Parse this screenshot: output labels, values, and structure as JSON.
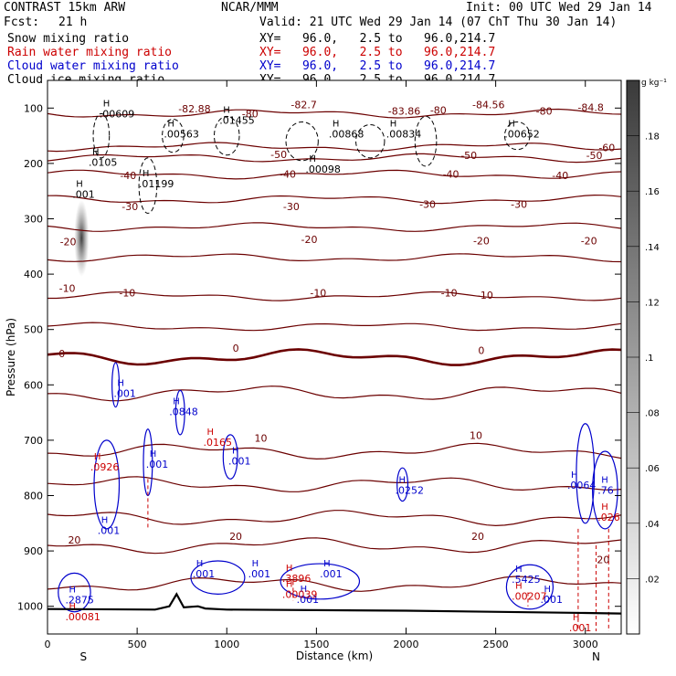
{
  "header": {
    "model": "CONTRAST 15km ARW",
    "center": "NCAR/MMM",
    "init": "Init: 00 UTC Wed 29 Jan 14",
    "fcst_label": "Fcst:",
    "fcst_value": "21 h",
    "valid": "Valid: 21 UTC Wed 29 Jan 14 (07 ChT Thu 30 Jan 14)",
    "fields": [
      {
        "name": "Snow mixing ratio",
        "xy": "XY=   96.0,   2.5 to   96.0,214.7",
        "color": "#000000"
      },
      {
        "name": "Rain water mixing ratio",
        "xy": "XY=   96.0,   2.5 to   96.0,214.7",
        "color": "#cc0000"
      },
      {
        "name": "Cloud water mixing ratio",
        "xy": "XY=   96.0,   2.5 to   96.0,214.7",
        "color": "#0000cc"
      },
      {
        "name": "Cloud ice mixing ratio",
        "xy": "XY=   96.0,   2.5 to   96.0,214.7",
        "color": "#000000"
      }
    ]
  },
  "colors": {
    "temperature": "#6b0000",
    "freezing": "#6b0000",
    "rain": "#cc0000",
    "cloud_water": "#0000cc",
    "terrain": "#000000"
  },
  "chart_data": {
    "type": "cross-section",
    "xlabel": "Distance (km)",
    "ylabel": "Pressure (hPa)",
    "xlim": [
      0,
      3200
    ],
    "ylim": [
      1050,
      50
    ],
    "xticks": [
      0,
      500,
      1000,
      1500,
      2000,
      2500,
      3000
    ],
    "yticks": [
      100,
      200,
      300,
      400,
      500,
      600,
      700,
      800,
      900,
      1000
    ],
    "endpoint_labels": {
      "left": "S",
      "right": "N"
    },
    "colorbar": {
      "unit": "g kg⁻¹",
      "ticks": [
        0.02,
        0.04,
        0.06,
        0.08,
        0.1,
        0.12,
        0.14,
        0.16,
        0.18
      ],
      "tick_labels": [
        ".02",
        ".04",
        ".06",
        ".08",
        ".1",
        ".12",
        ".14",
        ".16",
        ".18"
      ],
      "range": [
        0,
        0.2
      ]
    },
    "temperature_contours": [
      {
        "label": "-80",
        "p": 110
      },
      {
        "label": "-60",
        "p": 170
      },
      {
        "label": "-50",
        "p": 190
      },
      {
        "label": "-40",
        "p": 220
      },
      {
        "label": "-30",
        "p": 265
      },
      {
        "label": "-20",
        "p": 315
      },
      {
        "label": "-10",
        "p": 370
      },
      {
        "label": "",
        "p": 440
      },
      {
        "label": "",
        "p": 495
      },
      {
        "label": "0",
        "p": 550
      },
      {
        "label": "",
        "p": 615
      },
      {
        "label": "10",
        "p": 720
      },
      {
        "label": "",
        "p": 780
      },
      {
        "label": "",
        "p": 840
      },
      {
        "label": "20",
        "p": 890
      },
      {
        "label": "",
        "p": 960
      }
    ],
    "temperature_labels": [
      {
        "text": "-82.88",
        "x": 820,
        "p": 108
      },
      {
        "text": "-82.7",
        "x": 1430,
        "p": 100
      },
      {
        "text": "-83.86",
        "x": 1990,
        "p": 112
      },
      {
        "text": "-84.56",
        "x": 2460,
        "p": 100
      },
      {
        "text": "-84.8",
        "x": 3030,
        "p": 105
      },
      {
        "text": "-80",
        "x": 1130,
        "p": 117
      },
      {
        "text": "-80",
        "x": 2180,
        "p": 110
      },
      {
        "text": "-80",
        "x": 2770,
        "p": 112
      },
      {
        "text": "-60",
        "x": 3120,
        "p": 178
      },
      {
        "text": "-50",
        "x": 1290,
        "p": 190
      },
      {
        "text": "-50",
        "x": 2350,
        "p": 192
      },
      {
        "text": "-50",
        "x": 3050,
        "p": 192
      },
      {
        "text": "-40",
        "x": 450,
        "p": 228
      },
      {
        "text": "-40",
        "x": 1340,
        "p": 226
      },
      {
        "text": "-40",
        "x": 2250,
        "p": 226
      },
      {
        "text": "-40",
        "x": 2860,
        "p": 228
      },
      {
        "text": "-30",
        "x": 460,
        "p": 284
      },
      {
        "text": "-30",
        "x": 1360,
        "p": 284
      },
      {
        "text": "-30",
        "x": 2120,
        "p": 280
      },
      {
        "text": "-30",
        "x": 2630,
        "p": 280
      },
      {
        "text": "-20",
        "x": 115,
        "p": 348
      },
      {
        "text": "-20",
        "x": 1460,
        "p": 344
      },
      {
        "text": "-20",
        "x": 2420,
        "p": 346
      },
      {
        "text": "-20",
        "x": 3020,
        "p": 346
      },
      {
        "text": "-10",
        "x": 110,
        "p": 432
      },
      {
        "text": "-10",
        "x": 445,
        "p": 440
      },
      {
        "text": "-10",
        "x": 1510,
        "p": 440
      },
      {
        "text": "-10",
        "x": 2240,
        "p": 440
      },
      {
        "text": "-10",
        "x": 2440,
        "p": 444
      },
      {
        "text": "0",
        "x": 80,
        "p": 550
      },
      {
        "text": "0",
        "x": 1050,
        "p": 540
      },
      {
        "text": "0",
        "x": 2420,
        "p": 544
      },
      {
        "text": "10",
        "x": 1190,
        "p": 703
      },
      {
        "text": "10",
        "x": 2390,
        "p": 698
      },
      {
        "text": "20",
        "x": 150,
        "p": 887
      },
      {
        "text": "20",
        "x": 1050,
        "p": 880
      },
      {
        "text": "20",
        "x": 2400,
        "p": 880
      },
      {
        "text": "20",
        "x": 3100,
        "p": 922
      }
    ],
    "maxima": [
      {
        "text": ".00609",
        "x": 340,
        "p": 117,
        "series": "snow"
      },
      {
        "text": ".00563",
        "x": 700,
        "p": 153,
        "series": "snow"
      },
      {
        "text": ".01455",
        "x": 1010,
        "p": 128,
        "series": "snow"
      },
      {
        "text": ".0105",
        "x": 280,
        "p": 204,
        "series": "snow"
      },
      {
        "text": ".01199",
        "x": 560,
        "p": 243,
        "series": "snow"
      },
      {
        "text": ".001",
        "x": 190,
        "p": 262,
        "series": "snow"
      },
      {
        "text": ".00868",
        "x": 1620,
        "p": 153,
        "series": "snow"
      },
      {
        "text": ".00834",
        "x": 1940,
        "p": 153,
        "series": "snow"
      },
      {
        "text": ".00098",
        "x": 1490,
        "p": 217,
        "series": "snow"
      },
      {
        "text": ".00652",
        "x": 2600,
        "p": 153,
        "series": "snow"
      },
      {
        "text": ".001",
        "x": 420,
        "p": 622,
        "series": "cloud_water"
      },
      {
        "text": ".0848",
        "x": 730,
        "p": 655,
        "series": "cloud_water"
      },
      {
        "text": ".001",
        "x": 600,
        "p": 750,
        "series": "cloud_water"
      },
      {
        "text": ".001",
        "x": 1060,
        "p": 744,
        "series": "cloud_water"
      },
      {
        "text": ".001",
        "x": 330,
        "p": 869,
        "series": "cloud_water"
      },
      {
        "text": ".0252",
        "x": 1990,
        "p": 797,
        "series": "cloud_water"
      },
      {
        "text": ".001",
        "x": 860,
        "p": 948,
        "series": "cloud_water"
      },
      {
        "text": ".001",
        "x": 1170,
        "p": 948,
        "series": "cloud_water"
      },
      {
        "text": ".001",
        "x": 1570,
        "p": 948,
        "series": "cloud_water"
      },
      {
        "text": ".001",
        "x": 1440,
        "p": 994,
        "series": "cloud_water"
      },
      {
        "text": ".2875",
        "x": 150,
        "p": 995,
        "series": "cloud_water"
      },
      {
        "text": ".5425",
        "x": 2640,
        "p": 958,
        "series": "cloud_water"
      },
      {
        "text": ".001",
        "x": 2800,
        "p": 994,
        "series": "cloud_water"
      },
      {
        "text": ".0064",
        "x": 2950,
        "p": 788,
        "series": "cloud_water"
      },
      {
        "text": ".76",
        "x": 3120,
        "p": 797,
        "series": "cloud_water"
      },
      {
        "text": ".0926",
        "x": 290,
        "p": 755,
        "series": "rain"
      },
      {
        "text": ".0165",
        "x": 920,
        "p": 710,
        "series": "rain"
      },
      {
        "text": ".3896",
        "x": 1360,
        "p": 956,
        "series": "rain"
      },
      {
        "text": ".00039",
        "x": 1360,
        "p": 985,
        "series": "rain"
      },
      {
        "text": ".00081",
        "x": 150,
        "p": 1025,
        "series": "rain"
      },
      {
        "text": ".00207",
        "x": 2640,
        "p": 988,
        "series": "rain"
      },
      {
        "text": ".026",
        "x": 3120,
        "p": 845,
        "series": "rain"
      },
      {
        "text": ".001",
        "x": 2960,
        "p": 1045,
        "series": "rain"
      }
    ],
    "terrain_profile": [
      [
        0,
        1005
      ],
      [
        600,
        1006
      ],
      [
        680,
        1000
      ],
      [
        720,
        978
      ],
      [
        760,
        1002
      ],
      [
        840,
        1000
      ],
      [
        880,
        1004
      ],
      [
        1000,
        1006
      ],
      [
        2000,
        1008
      ],
      [
        3000,
        1012
      ],
      [
        3200,
        1013
      ]
    ]
  }
}
